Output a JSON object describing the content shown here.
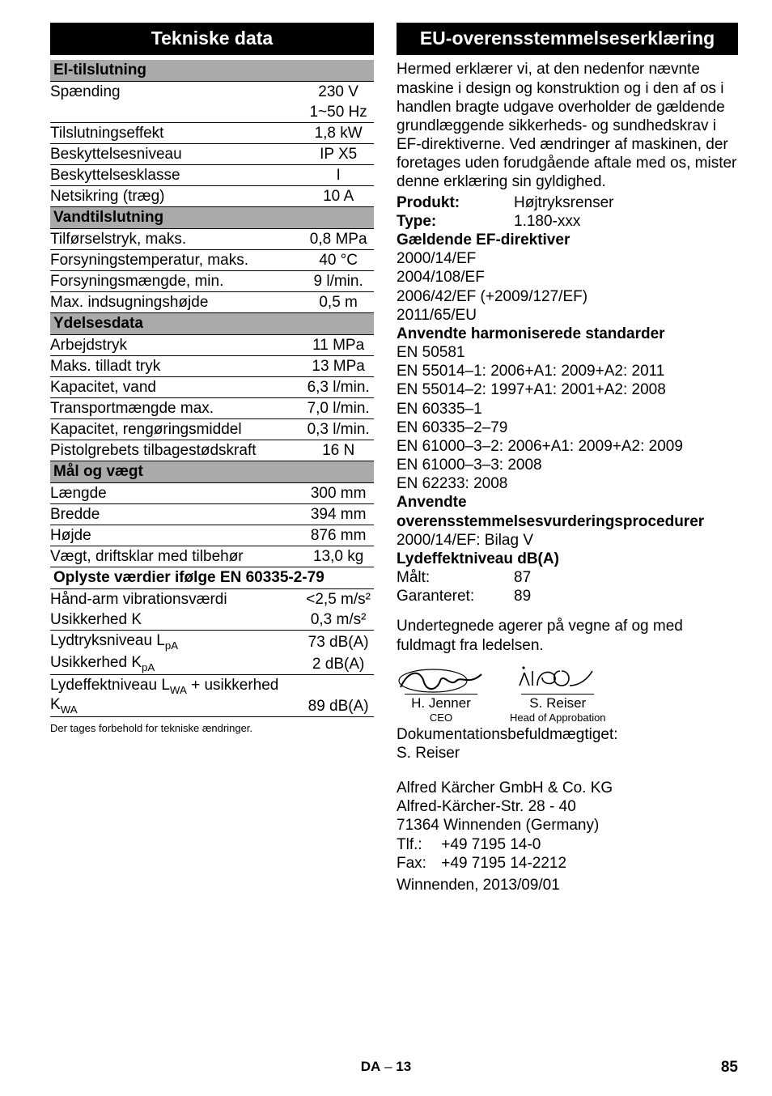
{
  "left": {
    "header": "Tekniske data",
    "groups": [
      {
        "title": "El-tilslutning",
        "rows": [
          {
            "label": "Spænding",
            "value": "230 V",
            "value2": "1~50 Hz"
          },
          {
            "label": "Tilslutningseffekt",
            "value": "1,8 kW"
          },
          {
            "label": "Beskyttelsesniveau",
            "value": "IP X5"
          },
          {
            "label": "Beskyttelsesklasse",
            "value": "I"
          },
          {
            "label": "Netsikring (træg)",
            "value": "10 A"
          }
        ]
      },
      {
        "title": "Vandtilslutning",
        "rows": [
          {
            "label": "Tilførselstryk, maks.",
            "value": "0,8 MPa"
          },
          {
            "label": "Forsyningstemperatur, maks.",
            "value": "40 °C"
          },
          {
            "label": "Forsyningsmængde, min.",
            "value": "9 l/min."
          },
          {
            "label": "Max. indsugningshøjde",
            "value": "0,5 m"
          }
        ]
      },
      {
        "title": "Ydelsesdata",
        "rows": [
          {
            "label": "Arbejdstryk",
            "value": "11 MPa"
          },
          {
            "label": "Maks. tilladt tryk",
            "value": "13 MPa"
          },
          {
            "label": "Kapacitet, vand",
            "value": "6,3 l/min."
          },
          {
            "label": "Transportmængde max.",
            "value": "7,0 l/min."
          },
          {
            "label": "Kapacitet, rengøringsmiddel",
            "value": "0,3 l/min."
          },
          {
            "label": "Pistolgrebets tilbagestødskraft",
            "value": "16 N"
          }
        ]
      },
      {
        "title": "Mål og vægt",
        "rows": [
          {
            "label": "Længde",
            "value": "300 mm"
          },
          {
            "label": "Bredde",
            "value": "394 mm"
          },
          {
            "label": "Højde",
            "value": "876 mm"
          },
          {
            "label": "Vægt, driftsklar med tilbehør",
            "value": "13,0 kg"
          }
        ]
      },
      {
        "title": "Oplyste værdier ifølge EN 60335-2-79",
        "wide": true,
        "rows": [
          {
            "label": "Hånd-arm vibrationsværdi",
            "value": "<2,5 m/s²",
            "nobottom": true
          },
          {
            "label": "Usikkerhed K",
            "value": "0,3 m/s²"
          },
          {
            "label_html": "Lydtryksniveau L<sub>pA</sub>",
            "value": "73 dB(A)",
            "nobottom": true
          },
          {
            "label_html": "Usikkerhed K<sub>pA</sub>",
            "value": "2 dB(A)"
          },
          {
            "label_html": "Lydeffektniveau L<sub>WA</sub> + usikkerhed K<sub>WA</sub>",
            "value": "89 dB(A)"
          }
        ]
      }
    ],
    "footnote": "Der tages forbehold for tekniske ændringer."
  },
  "right": {
    "header": "EU-overensstemmelseserklæring",
    "intro": "Hermed erklærer vi, at den nedenfor nævnte maskine i design og konstruktion og i den af os i handlen bragte udgave overholder de gældende grundlæggende sikkerheds- og sundhedskrav i EF-direktiverne. Ved ændringer af maskinen, der foretages uden forudgående aftale med os, mister denne erklæring sin gyldighed.",
    "kv": [
      {
        "k": "Produkt:",
        "v": "Højtryksrenser"
      },
      {
        "k": "Type:",
        "v": "1.180-xxx"
      }
    ],
    "directives_heading": "Gældende EF-direktiver",
    "directives": [
      "2000/14/EF",
      "2004/108/EF",
      "2006/42/EF (+2009/127/EF)",
      "2011/65/EU"
    ],
    "standards_heading": "Anvendte harmoniserede standarder",
    "standards": [
      "EN 50581",
      "EN 55014–1: 2006+A1: 2009+A2: 2011",
      "EN 55014–2: 1997+A1: 2001+A2: 2008",
      "EN 60335–1",
      "EN 60335–2–79",
      "EN 61000–3–2: 2006+A1: 2009+A2: 2009",
      "EN 61000–3–3: 2008",
      "EN 62233: 2008"
    ],
    "proc_heading": "Anvendte overensstemmelsesvurderingsprocedurer",
    "proc": "2000/14/EF: Bilag V",
    "sound_heading": "Lydeffektniveau dB(A)",
    "sound": [
      {
        "k": "Målt:",
        "v": "87"
      },
      {
        "k": "Garanteret:",
        "v": "89"
      }
    ],
    "signed_para": "Undertegnede agerer på vegne af og med fuldmagt fra ledelsen.",
    "sig1_name": "H. Jenner",
    "sig1_title": "CEO",
    "sig2_name": "S. Reiser",
    "sig2_title": "Head of Approbation",
    "doc_auth_label": "Dokumentationsbefuldmægtiget:",
    "doc_auth_name": "S. Reiser",
    "company": "Alfred Kärcher GmbH & Co. KG",
    "addr1": "Alfred-Kärcher-Str. 28 - 40",
    "addr2": "71364 Winnenden (Germany)",
    "tel_label": "Tlf.:",
    "tel": "+49 7195 14-0",
    "fax_label": "Fax:",
    "fax": "+49 7195 14-2212",
    "date": "Winnenden, 2013/09/01"
  },
  "footer": {
    "lang": "DA",
    "sep": "–",
    "innerpage": "13",
    "page": "85"
  }
}
